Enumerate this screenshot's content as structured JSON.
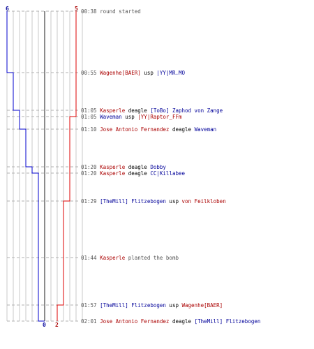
{
  "scores": {
    "blue_start": "6",
    "red_start": "5",
    "blue_end": "0",
    "red_end": "2"
  },
  "colors": {
    "ct": "#000099",
    "t": "#aa0000",
    "time": "#555555",
    "grid": "#c8c8c8"
  },
  "events": [
    {
      "time": "00:38",
      "parts": [
        {
          "text": "round started",
          "role": "event"
        }
      ]
    },
    {
      "time": "00:55",
      "parts": [
        {
          "text": "Wagenhe[BAER]",
          "role": "t"
        },
        {
          "text": " usp ",
          "role": "weapon"
        },
        {
          "text": "|YY|MR.MO",
          "role": "ct"
        }
      ]
    },
    {
      "time": "01:05",
      "parts": [
        {
          "text": "Kasperle",
          "role": "t"
        },
        {
          "text": " deagle ",
          "role": "weapon"
        },
        {
          "text": "[ToBo] Zaphod von Zange",
          "role": "ct"
        }
      ]
    },
    {
      "time": "01:05",
      "parts": [
        {
          "text": "Waveman",
          "role": "ct"
        },
        {
          "text": " usp ",
          "role": "weapon"
        },
        {
          "text": "|YY|Raptor_FFm",
          "role": "t"
        }
      ]
    },
    {
      "time": "01:10",
      "parts": [
        {
          "text": "Jose Antonio Fernandez",
          "role": "t"
        },
        {
          "text": " deagle ",
          "role": "weapon"
        },
        {
          "text": "Waveman",
          "role": "ct"
        }
      ]
    },
    {
      "time": "01:20",
      "parts": [
        {
          "text": "Kasperle",
          "role": "t"
        },
        {
          "text": " deagle ",
          "role": "weapon"
        },
        {
          "text": "Dobby",
          "role": "ct"
        }
      ]
    },
    {
      "time": "01:20",
      "parts": [
        {
          "text": "Kasperle",
          "role": "t"
        },
        {
          "text": " deagle ",
          "role": "weapon"
        },
        {
          "text": "CC|Killabee",
          "role": "ct"
        }
      ]
    },
    {
      "time": "01:29",
      "parts": [
        {
          "text": "[TheMill] Flitzebogen",
          "role": "ct"
        },
        {
          "text": " usp ",
          "role": "weapon"
        },
        {
          "text": "von Feilkloben",
          "role": "t"
        }
      ]
    },
    {
      "time": "01:44",
      "parts": [
        {
          "text": "Kasperle",
          "role": "t"
        },
        {
          "text": " planted the bomb",
          "role": "event"
        }
      ]
    },
    {
      "time": "01:57",
      "parts": [
        {
          "text": "[TheMill] Flitzebogen",
          "role": "ct"
        },
        {
          "text": " usp ",
          "role": "weapon"
        },
        {
          "text": "Wagenhe[BAER]",
          "role": "t"
        }
      ]
    },
    {
      "time": "02:01",
      "parts": [
        {
          "text": "Jose Antonio Fernandez",
          "role": "t"
        },
        {
          "text": " deagle ",
          "role": "weapon"
        },
        {
          "text": "[TheMill] Flitzebogen",
          "role": "ct"
        }
      ]
    }
  ],
  "alive_counts": {
    "ct": [
      6,
      5,
      4,
      4,
      3,
      2,
      1,
      1,
      1,
      1,
      0
    ],
    "t": [
      5,
      5,
      5,
      4,
      4,
      4,
      4,
      3,
      3,
      2,
      2
    ]
  }
}
